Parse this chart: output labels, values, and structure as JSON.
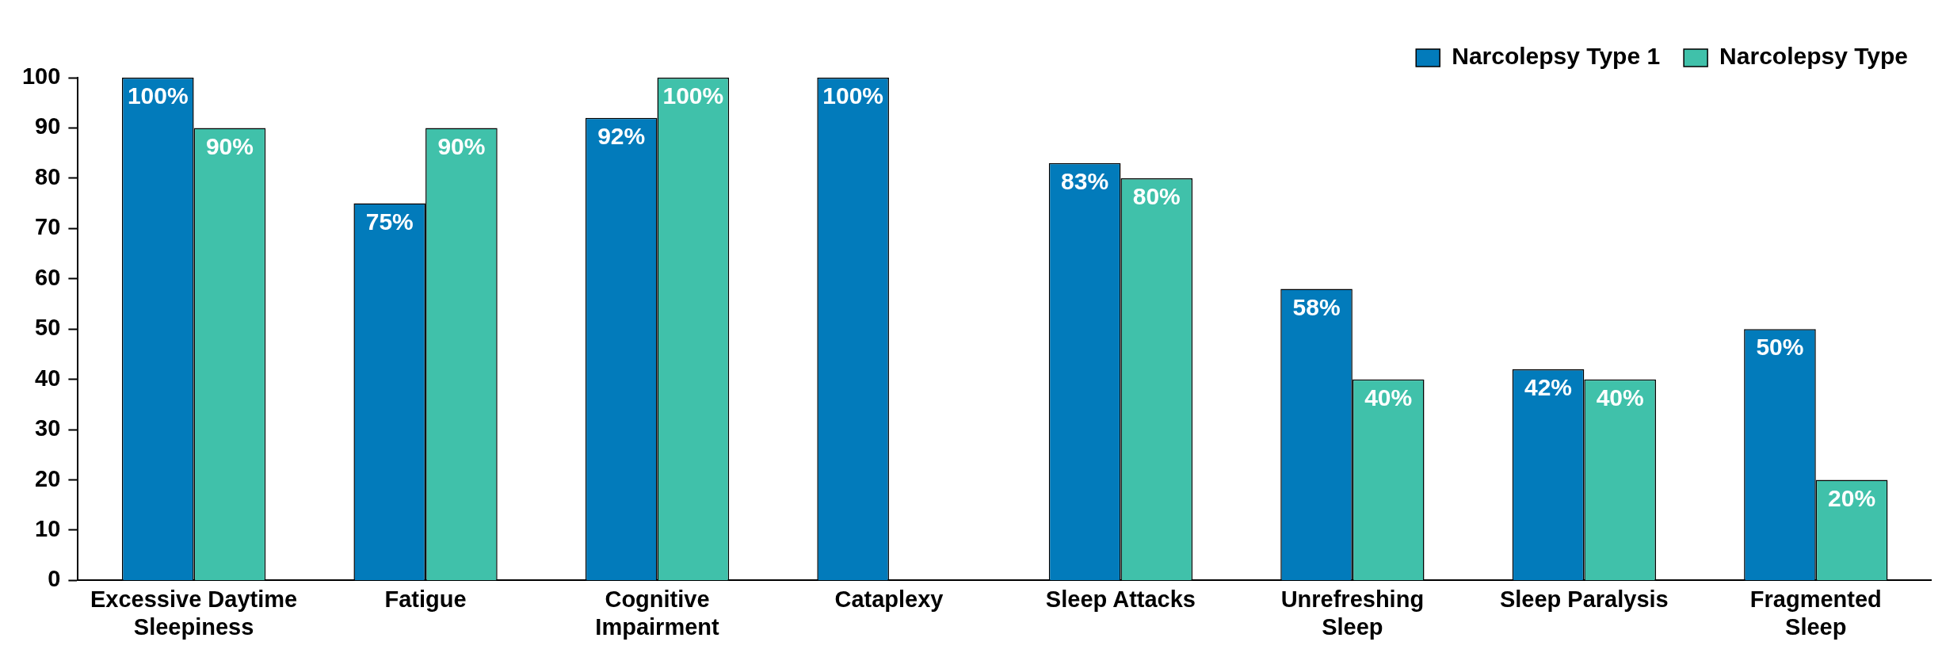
{
  "chart_data": {
    "type": "bar",
    "categories": [
      "Excessive Daytime\nSleepiness",
      "Fatigue",
      "Cognitive\nImpairment",
      "Cataplexy",
      "Sleep Attacks",
      "Unrefreshing\nSleep",
      "Sleep Paralysis",
      "Fragmented\nSleep"
    ],
    "series": [
      {
        "name": "Narcolepsy Type 1",
        "color": "#027bbb",
        "values": [
          100,
          75,
          92,
          100,
          83,
          58,
          42,
          50
        ],
        "value_labels": [
          "100%",
          "75%",
          "92%",
          "100%",
          "83%",
          "58%",
          "42%",
          "50%"
        ]
      },
      {
        "name": "Narcolepsy Type",
        "color": "#40c1aa",
        "values": [
          90,
          90,
          100,
          null,
          80,
          40,
          40,
          20
        ],
        "value_labels": [
          "90%",
          "90%",
          "100%",
          null,
          "80%",
          "40%",
          "40%",
          "20%"
        ]
      }
    ],
    "ylim": [
      0,
      100
    ],
    "yticks": [
      0,
      10,
      20,
      30,
      40,
      50,
      60,
      70,
      80,
      90,
      100
    ],
    "grid": false,
    "legend": "top right"
  }
}
